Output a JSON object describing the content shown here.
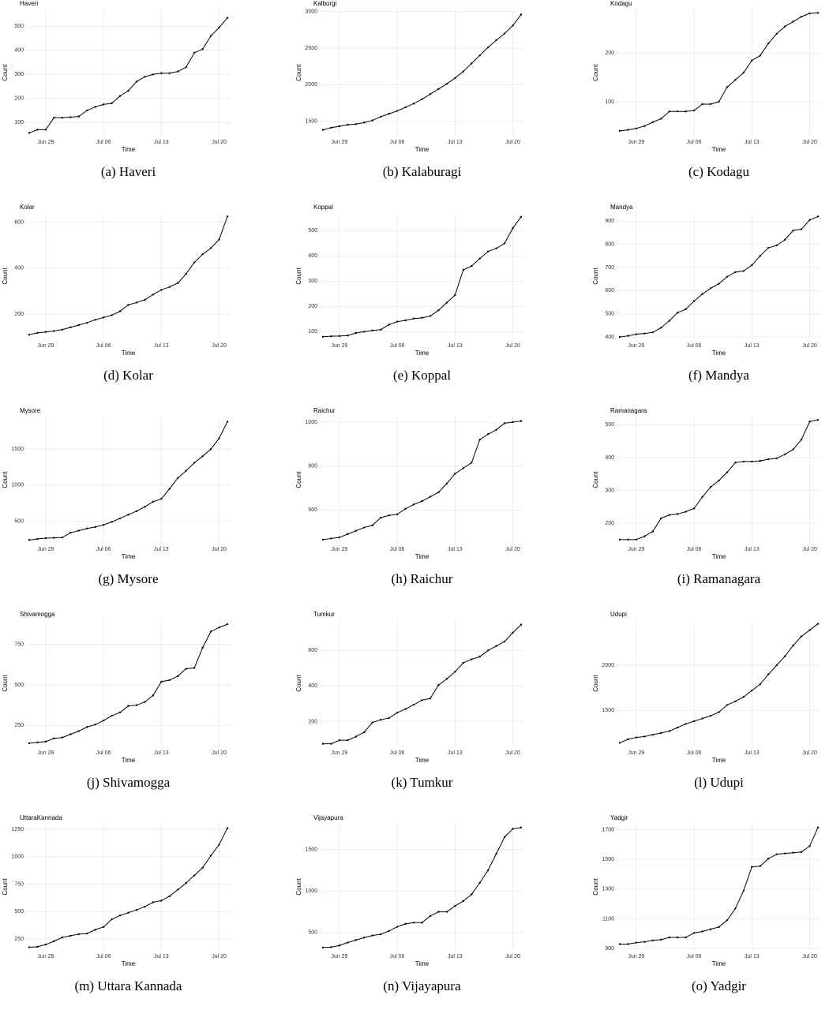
{
  "chart_data": [
    {
      "type": "line",
      "title": "Haveri",
      "caption": "(a) Haveri",
      "xlabel": "Time",
      "ylabel": "Count",
      "color": "#000000",
      "grid": true,
      "x": [
        "Jun 27",
        "Jun 28",
        "Jun 29",
        "Jun 30",
        "Jul 01",
        "Jul 02",
        "Jul 03",
        "Jul 04",
        "Jul 05",
        "Jul 06",
        "Jul 07",
        "Jul 08",
        "Jul 09",
        "Jul 10",
        "Jul 11",
        "Jul 12",
        "Jul 13",
        "Jul 14",
        "Jul 15",
        "Jul 16",
        "Jul 17",
        "Jul 18",
        "Jul 19",
        "Jul 20",
        "Jul 21"
      ],
      "xticks": [
        "Jun 29",
        "Jul 06",
        "Jul 13",
        "Jul 20"
      ],
      "values": [
        57,
        70,
        70,
        120,
        120,
        122,
        125,
        150,
        165,
        175,
        180,
        210,
        232,
        270,
        290,
        300,
        305,
        305,
        312,
        330,
        390,
        405,
        460,
        495,
        535
      ],
      "ylim": [
        45,
        570
      ],
      "yticks": [
        100,
        200,
        300,
        400,
        500
      ]
    },
    {
      "type": "line",
      "title": "Kalburgi",
      "caption": "(b) Kalaburagi",
      "xlabel": "Time",
      "ylabel": "Count",
      "color": "#000000",
      "grid": true,
      "x": [
        "Jun 27",
        "Jun 28",
        "Jun 29",
        "Jun 30",
        "Jul 01",
        "Jul 02",
        "Jul 03",
        "Jul 04",
        "Jul 05",
        "Jul 06",
        "Jul 07",
        "Jul 08",
        "Jul 09",
        "Jul 10",
        "Jul 11",
        "Jul 12",
        "Jul 13",
        "Jul 14",
        "Jul 15",
        "Jul 16",
        "Jul 17",
        "Jul 18",
        "Jul 19",
        "Jul 20",
        "Jul 21"
      ],
      "xticks": [
        "Jun 29",
        "Jul 06",
        "Jul 13",
        "Jul 20"
      ],
      "values": [
        1380,
        1410,
        1430,
        1450,
        1460,
        1480,
        1510,
        1560,
        1600,
        1640,
        1690,
        1740,
        1800,
        1870,
        1940,
        2010,
        2090,
        2180,
        2290,
        2400,
        2510,
        2610,
        2700,
        2810,
        2960
      ],
      "ylim": [
        1300,
        3030
      ],
      "yticks": [
        1500,
        2000,
        2500,
        3000
      ]
    },
    {
      "type": "line",
      "title": "Kodagu",
      "caption": "(c) Kodagu",
      "xlabel": "Time",
      "ylabel": "Count",
      "color": "#000000",
      "grid": true,
      "x": [
        "Jun 27",
        "Jun 28",
        "Jun 29",
        "Jun 30",
        "Jul 01",
        "Jul 02",
        "Jul 03",
        "Jul 04",
        "Jul 05",
        "Jul 06",
        "Jul 07",
        "Jul 08",
        "Jul 09",
        "Jul 10",
        "Jul 11",
        "Jul 12",
        "Jul 13",
        "Jul 14",
        "Jul 15",
        "Jul 16",
        "Jul 17",
        "Jul 18",
        "Jul 19",
        "Jul 20",
        "Jul 21"
      ],
      "xticks": [
        "Jun 29",
        "Jul 06",
        "Jul 13",
        "Jul 20"
      ],
      "values": [
        40,
        42,
        45,
        50,
        58,
        65,
        80,
        80,
        80,
        82,
        95,
        95,
        100,
        130,
        145,
        160,
        185,
        195,
        220,
        240,
        255,
        265,
        275,
        282,
        283
      ],
      "ylim": [
        30,
        290
      ],
      "yticks": [
        100,
        200
      ]
    },
    {
      "type": "line",
      "title": "Kolar",
      "caption": "(d) Kolar",
      "xlabel": "Time",
      "ylabel": "Count",
      "color": "#000000",
      "grid": true,
      "x": [
        "Jun 27",
        "Jun 28",
        "Jun 29",
        "Jun 30",
        "Jul 01",
        "Jul 02",
        "Jul 03",
        "Jul 04",
        "Jul 05",
        "Jul 06",
        "Jul 07",
        "Jul 08",
        "Jul 09",
        "Jul 10",
        "Jul 11",
        "Jul 12",
        "Jul 13",
        "Jul 14",
        "Jul 15",
        "Jul 16",
        "Jul 17",
        "Jul 18",
        "Jul 19",
        "Jul 20",
        "Jul 21"
      ],
      "xticks": [
        "Jun 29",
        "Jul 06",
        "Jul 13",
        "Jul 20"
      ],
      "values": [
        110,
        118,
        122,
        126,
        132,
        142,
        152,
        162,
        175,
        185,
        195,
        212,
        240,
        250,
        262,
        285,
        305,
        318,
        335,
        375,
        425,
        460,
        487,
        525,
        625
      ],
      "ylim": [
        90,
        640
      ],
      "yticks": [
        200,
        400,
        600
      ]
    },
    {
      "type": "line",
      "title": "Koppal",
      "caption": "(e) Koppal",
      "xlabel": "Time",
      "ylabel": "Count",
      "color": "#000000",
      "grid": true,
      "x": [
        "Jun 27",
        "Jun 28",
        "Jun 29",
        "Jun 30",
        "Jul 01",
        "Jul 02",
        "Jul 03",
        "Jul 04",
        "Jul 05",
        "Jul 06",
        "Jul 07",
        "Jul 08",
        "Jul 09",
        "Jul 10",
        "Jul 11",
        "Jul 12",
        "Jul 13",
        "Jul 14",
        "Jul 15",
        "Jul 16",
        "Jul 17",
        "Jul 18",
        "Jul 19",
        "Jul 20",
        "Jul 21"
      ],
      "xticks": [
        "Jun 29",
        "Jul 06",
        "Jul 13",
        "Jul 20"
      ],
      "values": [
        80,
        82,
        83,
        85,
        95,
        100,
        105,
        108,
        128,
        140,
        145,
        152,
        155,
        162,
        185,
        215,
        245,
        345,
        360,
        390,
        418,
        430,
        450,
        510,
        555
      ],
      "ylim": [
        70,
        570
      ],
      "yticks": [
        100,
        200,
        300,
        400,
        500
      ]
    },
    {
      "type": "line",
      "title": "Mandya",
      "caption": "(f) Mandya",
      "xlabel": "Time",
      "ylabel": "Count",
      "color": "#000000",
      "grid": true,
      "x": [
        "Jun 27",
        "Jun 28",
        "Jun 29",
        "Jun 30",
        "Jul 01",
        "Jul 02",
        "Jul 03",
        "Jul 04",
        "Jul 05",
        "Jul 06",
        "Jul 07",
        "Jul 08",
        "Jul 09",
        "Jul 10",
        "Jul 11",
        "Jul 12",
        "Jul 13",
        "Jul 14",
        "Jul 15",
        "Jul 16",
        "Jul 17",
        "Jul 18",
        "Jul 19",
        "Jul 20",
        "Jul 21"
      ],
      "xticks": [
        "Jun 29",
        "Jul 06",
        "Jul 13",
        "Jul 20"
      ],
      "values": [
        400,
        405,
        412,
        415,
        420,
        440,
        470,
        505,
        520,
        555,
        585,
        610,
        630,
        660,
        680,
        685,
        710,
        750,
        785,
        795,
        820,
        860,
        865,
        905,
        920
      ],
      "ylim": [
        390,
        935
      ],
      "yticks": [
        400,
        500,
        600,
        700,
        800,
        900
      ]
    },
    {
      "type": "line",
      "title": "Mysore",
      "caption": "(g) Mysore",
      "xlabel": "Time",
      "ylabel": "Count",
      "color": "#000000",
      "grid": true,
      "x": [
        "Jun 27",
        "Jun 28",
        "Jun 29",
        "Jun 30",
        "Jul 01",
        "Jul 02",
        "Jul 03",
        "Jul 04",
        "Jul 05",
        "Jul 06",
        "Jul 07",
        "Jul 08",
        "Jul 09",
        "Jul 10",
        "Jul 11",
        "Jul 12",
        "Jul 13",
        "Jul 14",
        "Jul 15",
        "Jul 16",
        "Jul 17",
        "Jul 18",
        "Jul 19",
        "Jul 20",
        "Jul 21"
      ],
      "xticks": [
        "Jun 29",
        "Jul 06",
        "Jul 13",
        "Jul 20"
      ],
      "values": [
        240,
        255,
        265,
        270,
        275,
        340,
        370,
        400,
        420,
        450,
        490,
        540,
        590,
        640,
        700,
        770,
        810,
        950,
        1100,
        1200,
        1310,
        1400,
        1500,
        1650,
        1880
      ],
      "ylim": [
        200,
        1950
      ],
      "yticks": [
        500,
        1000,
        1500
      ]
    },
    {
      "type": "line",
      "title": "Raichur",
      "caption": "(h) Raichur",
      "xlabel": "Time",
      "ylabel": "Count",
      "color": "#000000",
      "grid": true,
      "x": [
        "Jun 27",
        "Jun 28",
        "Jun 29",
        "Jun 30",
        "Jul 01",
        "Jul 02",
        "Jul 03",
        "Jul 04",
        "Jul 05",
        "Jul 06",
        "Jul 07",
        "Jul 08",
        "Jul 09",
        "Jul 10",
        "Jul 11",
        "Jul 12",
        "Jul 13",
        "Jul 14",
        "Jul 15",
        "Jul 16",
        "Jul 17",
        "Jul 18",
        "Jul 19",
        "Jul 20",
        "Jul 21"
      ],
      "xticks": [
        "Jun 29",
        "Jul 06",
        "Jul 13",
        "Jul 20"
      ],
      "values": [
        465,
        470,
        475,
        490,
        505,
        520,
        530,
        565,
        575,
        580,
        605,
        625,
        640,
        660,
        680,
        720,
        765,
        790,
        815,
        920,
        945,
        965,
        995,
        1000,
        1005
      ],
      "ylim": [
        450,
        1025
      ],
      "yticks": [
        600,
        800,
        1000
      ]
    },
    {
      "type": "line",
      "title": "Ramanagara",
      "caption": "(i) Ramanagara",
      "xlabel": "Time",
      "ylabel": "Count",
      "color": "#000000",
      "grid": true,
      "x": [
        "Jun 27",
        "Jun 28",
        "Jun 29",
        "Jun 30",
        "Jul 01",
        "Jul 02",
        "Jul 03",
        "Jul 04",
        "Jul 05",
        "Jul 06",
        "Jul 07",
        "Jul 08",
        "Jul 09",
        "Jul 10",
        "Jul 11",
        "Jul 12",
        "Jul 13",
        "Jul 14",
        "Jul 15",
        "Jul 16",
        "Jul 17",
        "Jul 18",
        "Jul 19",
        "Jul 20",
        "Jul 21"
      ],
      "xticks": [
        "Jun 29",
        "Jul 06",
        "Jul 13",
        "Jul 20"
      ],
      "values": [
        150,
        150,
        150,
        160,
        175,
        215,
        225,
        228,
        235,
        245,
        280,
        310,
        330,
        355,
        385,
        388,
        388,
        390,
        395,
        398,
        410,
        425,
        455,
        510,
        515
      ],
      "ylim": [
        140,
        525
      ],
      "yticks": [
        200,
        300,
        400,
        500
      ]
    },
    {
      "type": "line",
      "title": "Shivamogga",
      "caption": "(j) Shivamogga",
      "xlabel": "Time",
      "ylabel": "Count",
      "color": "#000000",
      "grid": true,
      "x": [
        "Jun 27",
        "Jun 28",
        "Jun 29",
        "Jun 30",
        "Jul 01",
        "Jul 02",
        "Jul 03",
        "Jul 04",
        "Jul 05",
        "Jul 06",
        "Jul 07",
        "Jul 08",
        "Jul 09",
        "Jul 10",
        "Jul 11",
        "Jul 12",
        "Jul 13",
        "Jul 14",
        "Jul 15",
        "Jul 16",
        "Jul 17",
        "Jul 18",
        "Jul 19",
        "Jul 20",
        "Jul 21"
      ],
      "xticks": [
        "Jun 29",
        "Jul 06",
        "Jul 13",
        "Jul 20"
      ],
      "values": [
        140,
        145,
        150,
        170,
        175,
        195,
        215,
        240,
        255,
        280,
        310,
        330,
        370,
        375,
        395,
        435,
        520,
        530,
        555,
        600,
        605,
        730,
        830,
        855,
        875
      ],
      "ylim": [
        120,
        900
      ],
      "yticks": [
        250,
        500,
        750
      ]
    },
    {
      "type": "line",
      "title": "Tumkur",
      "caption": "(k) Tumkur",
      "xlabel": "Time",
      "ylabel": "Count",
      "color": "#000000",
      "grid": true,
      "x": [
        "Jun 27",
        "Jun 28",
        "Jun 29",
        "Jun 30",
        "Jul 01",
        "Jul 02",
        "Jul 03",
        "Jul 04",
        "Jul 05",
        "Jul 06",
        "Jul 07",
        "Jul 08",
        "Jul 09",
        "Jul 10",
        "Jul 11",
        "Jul 12",
        "Jul 13",
        "Jul 14",
        "Jul 15",
        "Jul 16",
        "Jul 17",
        "Jul 18",
        "Jul 19",
        "Jul 20",
        "Jul 21"
      ],
      "xticks": [
        "Jun 29",
        "Jul 06",
        "Jul 13",
        "Jul 20"
      ],
      "values": [
        75,
        75,
        95,
        95,
        115,
        140,
        195,
        210,
        220,
        250,
        270,
        295,
        320,
        330,
        405,
        440,
        480,
        530,
        550,
        565,
        600,
        625,
        650,
        700,
        745
      ],
      "ylim": [
        60,
        770
      ],
      "yticks": [
        200,
        400,
        600
      ]
    },
    {
      "type": "line",
      "title": "Udupi",
      "caption": "(l) Udupi",
      "xlabel": "Time",
      "ylabel": "Count",
      "color": "#000000",
      "grid": true,
      "x": [
        "Jun 27",
        "Jun 28",
        "Jun 29",
        "Jun 30",
        "Jul 01",
        "Jul 02",
        "Jul 03",
        "Jul 04",
        "Jul 05",
        "Jul 06",
        "Jul 07",
        "Jul 08",
        "Jul 09",
        "Jul 10",
        "Jul 11",
        "Jul 12",
        "Jul 13",
        "Jul 14",
        "Jul 15",
        "Jul 16",
        "Jul 17",
        "Jul 18",
        "Jul 19",
        "Jul 20",
        "Jul 21"
      ],
      "xticks": [
        "Jun 29",
        "Jul 06",
        "Jul 13",
        "Jul 20"
      ],
      "values": [
        1140,
        1180,
        1200,
        1210,
        1230,
        1250,
        1270,
        1310,
        1350,
        1380,
        1410,
        1440,
        1480,
        1560,
        1600,
        1650,
        1720,
        1790,
        1900,
        2000,
        2100,
        2220,
        2320,
        2390,
        2460
      ],
      "ylim": [
        1100,
        2500
      ],
      "yticks": [
        1500,
        2000
      ]
    },
    {
      "type": "line",
      "title": "UttaraKannada",
      "caption": "(m) Uttara Kannada",
      "xlabel": "Time",
      "ylabel": "Count",
      "color": "#000000",
      "grid": true,
      "x": [
        "Jun 27",
        "Jun 28",
        "Jun 29",
        "Jun 30",
        "Jul 01",
        "Jul 02",
        "Jul 03",
        "Jul 04",
        "Jul 05",
        "Jul 06",
        "Jul 07",
        "Jul 08",
        "Jul 09",
        "Jul 10",
        "Jul 11",
        "Jul 12",
        "Jul 13",
        "Jul 14",
        "Jul 15",
        "Jul 16",
        "Jul 17",
        "Jul 18",
        "Jul 19",
        "Jul 20",
        "Jul 21"
      ],
      "xticks": [
        "Jun 29",
        "Jul 06",
        "Jul 13",
        "Jul 20"
      ],
      "values": [
        175,
        180,
        200,
        230,
        265,
        280,
        295,
        300,
        335,
        360,
        430,
        465,
        490,
        515,
        545,
        585,
        600,
        640,
        700,
        760,
        830,
        900,
        1010,
        1110,
        1260
      ],
      "ylim": [
        150,
        1300
      ],
      "yticks": [
        250,
        500,
        750,
        1000,
        1250
      ]
    },
    {
      "type": "line",
      "title": "Vijayapura",
      "caption": "(n) Vijayapura",
      "xlabel": "Time",
      "ylabel": "Count",
      "color": "#000000",
      "grid": true,
      "x": [
        "Jun 27",
        "Jun 28",
        "Jun 29",
        "Jun 30",
        "Jul 01",
        "Jul 02",
        "Jul 03",
        "Jul 04",
        "Jul 05",
        "Jul 06",
        "Jul 07",
        "Jul 08",
        "Jul 09",
        "Jul 10",
        "Jul 11",
        "Jul 12",
        "Jul 13",
        "Jul 14",
        "Jul 15",
        "Jul 16",
        "Jul 17",
        "Jul 18",
        "Jul 19",
        "Jul 20",
        "Jul 21"
      ],
      "xticks": [
        "Jun 29",
        "Jul 06",
        "Jul 13",
        "Jul 20"
      ],
      "values": [
        320,
        325,
        345,
        380,
        410,
        440,
        465,
        480,
        520,
        570,
        605,
        620,
        620,
        700,
        750,
        750,
        820,
        880,
        960,
        1100,
        1250,
        1450,
        1650,
        1750,
        1765
      ],
      "ylim": [
        290,
        1810
      ],
      "yticks": [
        500,
        1000,
        1500
      ]
    },
    {
      "type": "line",
      "title": "Yadgir",
      "caption": "(o) Yadgir",
      "xlabel": "Time",
      "ylabel": "Count",
      "color": "#000000",
      "grid": true,
      "x": [
        "Jun 27",
        "Jun 28",
        "Jun 29",
        "Jun 30",
        "Jul 01",
        "Jul 02",
        "Jul 03",
        "Jul 04",
        "Jul 05",
        "Jul 06",
        "Jul 07",
        "Jul 08",
        "Jul 09",
        "Jul 10",
        "Jul 11",
        "Jul 12",
        "Jul 13",
        "Jul 14",
        "Jul 15",
        "Jul 16",
        "Jul 17",
        "Jul 18",
        "Jul 19",
        "Jul 20",
        "Jul 21"
      ],
      "xticks": [
        "Jun 29",
        "Jul 06",
        "Jul 13",
        "Jul 20"
      ],
      "values": [
        930,
        930,
        940,
        945,
        955,
        960,
        975,
        975,
        975,
        1005,
        1015,
        1030,
        1045,
        1090,
        1170,
        1290,
        1450,
        1455,
        1505,
        1535,
        1540,
        1545,
        1550,
        1590,
        1715
      ],
      "ylim": [
        890,
        1740
      ],
      "yticks": [
        900,
        1100,
        1300,
        1500,
        1700
      ]
    }
  ]
}
